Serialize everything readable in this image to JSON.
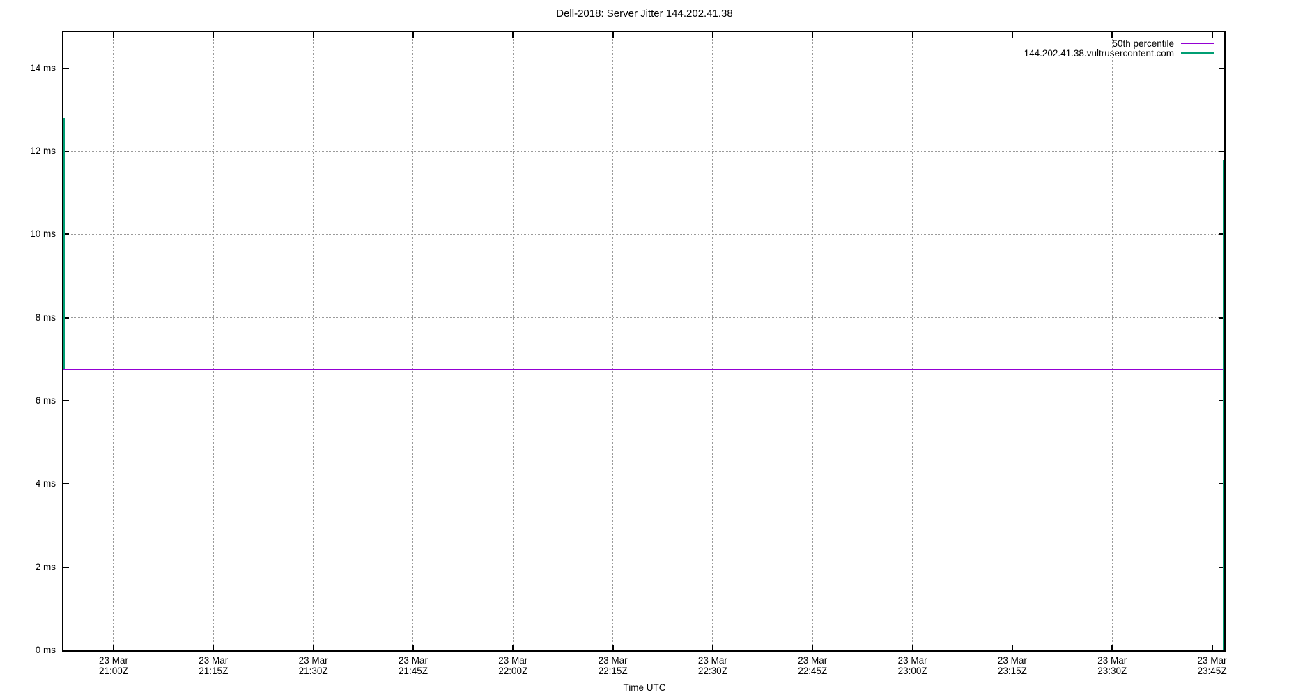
{
  "chart_data": {
    "type": "line",
    "title": "Dell-2018: Server Jitter 144.202.41.38",
    "xlabel": "Time UTC",
    "ylabel": "",
    "ylim": [
      0,
      14.87
    ],
    "grid": true,
    "legend_position": "top-right-inside",
    "y_ticks": [
      {
        "value": 0,
        "label": "0 ms"
      },
      {
        "value": 2,
        "label": "2 ms"
      },
      {
        "value": 4,
        "label": "4 ms"
      },
      {
        "value": 6,
        "label": "6 ms"
      },
      {
        "value": 8,
        "label": "8 ms"
      },
      {
        "value": 10,
        "label": "10 ms"
      },
      {
        "value": 12,
        "label": "12 ms"
      },
      {
        "value": 14,
        "label": "14 ms"
      }
    ],
    "x_ticks": [
      {
        "date": "23 Mar",
        "time": "21:00Z"
      },
      {
        "date": "23 Mar",
        "time": "21:15Z"
      },
      {
        "date": "23 Mar",
        "time": "21:30Z"
      },
      {
        "date": "23 Mar",
        "time": "21:45Z"
      },
      {
        "date": "23 Mar",
        "time": "22:00Z"
      },
      {
        "date": "23 Mar",
        "time": "22:15Z"
      },
      {
        "date": "23 Mar",
        "time": "22:30Z"
      },
      {
        "date": "23 Mar",
        "time": "22:45Z"
      },
      {
        "date": "23 Mar",
        "time": "23:00Z"
      },
      {
        "date": "23 Mar",
        "time": "23:15Z"
      },
      {
        "date": "23 Mar",
        "time": "23:30Z"
      },
      {
        "date": "23 Mar",
        "time": "23:45Z"
      }
    ],
    "series": [
      {
        "name": "50th percentile",
        "color": "#9400d3",
        "shape": "horizontal-line",
        "value_ms": 6.76
      },
      {
        "name": "144.202.41.38.vultrusercontent.com",
        "color": "#009e73",
        "shape": "edge-spikes",
        "segments": [
          {
            "x_frac": 0,
            "y_from_ms": 6.76,
            "y_to_ms": 12.8
          },
          {
            "x_frac": 1,
            "y_from_ms": 0,
            "y_to_ms": 11.8
          }
        ]
      }
    ],
    "colors": {
      "axis": "#000000",
      "grid": "#9a9a9a",
      "background": "#ffffff",
      "text": "#000000"
    }
  }
}
